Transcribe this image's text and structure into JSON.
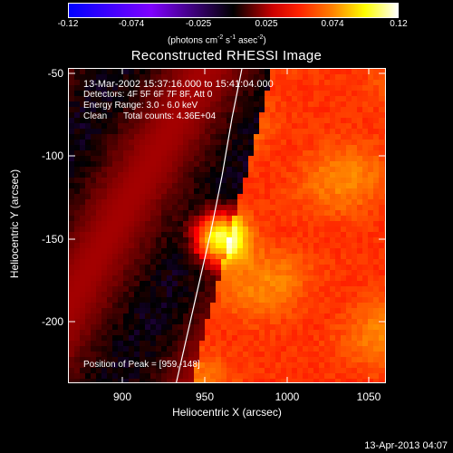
{
  "chart_data": {
    "type": "heatmap",
    "title": "Reconstructed RHESSI Image",
    "xlabel": "Heliocentric X (arcsec)",
    "ylabel": "Heliocentric Y (arcsec)",
    "xlim": [
      867,
      1060
    ],
    "ylim": [
      -237,
      -45
    ],
    "x_ticks": [
      900,
      950,
      1000,
      1050
    ],
    "y_ticks": [
      -50,
      -100,
      -150,
      -200
    ],
    "colorbar": {
      "min": -0.12,
      "max": 0.12,
      "ticks": [
        "-0.12",
        "-0.074",
        "-0.025",
        "0.025",
        "0.074",
        "0.12"
      ],
      "tick_values": [
        -0.12,
        -0.074,
        -0.025,
        0.025,
        0.074,
        0.12
      ],
      "unit_parts": [
        "(photons cm",
        "-2",
        " s",
        "-1",
        " asec",
        "-2",
        ")"
      ],
      "colors": [
        "#0000ff",
        "#7f00ff",
        "#000000",
        "#ff0000",
        "#ff7f00",
        "#ffff00",
        "#ffffff"
      ]
    },
    "annotations": {
      "time_range": "13-Mar-2002 15:37:16.000 to 15:41:04.000",
      "detectors": "Detectors: 4F 5F 6F 7F 8F, Att 0",
      "energy": "Energy Range: 3.0 - 6.0 keV",
      "method": "Clean",
      "counts": "Total counts: 4.36E+04",
      "peak": "Position of Peak = [959,-148]"
    },
    "peak": {
      "x": 959,
      "y": -148
    },
    "limb_curve": [
      [
        932,
        -237
      ],
      [
        945,
        -180
      ],
      [
        953,
        -145
      ],
      [
        960,
        -110
      ],
      [
        966,
        -75
      ],
      [
        972,
        -45
      ]
    ]
  },
  "footer": {
    "date": "13-Apr-2013 04:07"
  }
}
